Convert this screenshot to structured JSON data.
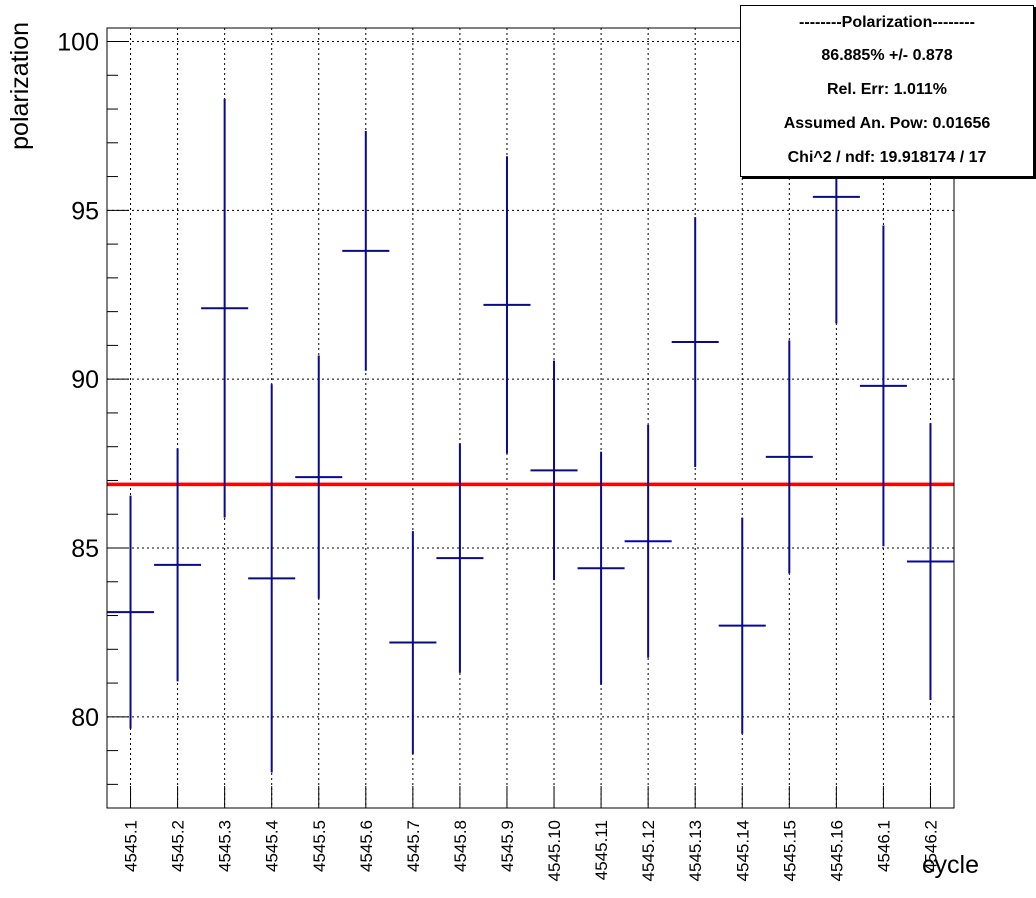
{
  "chart_data": {
    "type": "scatter",
    "xlabel": "cycle",
    "ylabel": "polarization",
    "ylim": [
      77.3,
      100.4
    ],
    "yticks": [
      80,
      85,
      90,
      95,
      100
    ],
    "grid": true,
    "categories": [
      "4545.1",
      "4545.2",
      "4545.3",
      "4545.4",
      "4545.5",
      "4545.6",
      "4545.7",
      "4545.8",
      "4545.9",
      "4545.10",
      "4545.11",
      "4545.12",
      "4545.13",
      "4545.14",
      "4545.15",
      "4545.16",
      "4546.1",
      "4546.2"
    ],
    "series": [
      {
        "values": [
          83.1,
          84.5,
          92.1,
          84.1,
          87.1,
          93.8,
          82.2,
          84.7,
          92.2,
          87.3,
          84.4,
          85.2,
          91.1,
          82.7,
          87.7,
          95.4,
          89.8,
          84.6
        ],
        "errors": [
          3.45,
          3.45,
          6.2,
          5.75,
          3.6,
          3.55,
          3.3,
          3.4,
          4.4,
          3.25,
          3.45,
          3.45,
          3.7,
          3.2,
          3.45,
          3.75,
          4.75,
          4.1
        ],
        "color": "#0a0a8c"
      }
    ],
    "fit_line": {
      "value": 86.885,
      "color": "#ff0000"
    },
    "stats_box": {
      "title": "--------Polarization--------",
      "lines": [
        "86.885% +/- 0.878",
        "Rel. Err: 1.011%",
        "Assumed An. Pow: 0.01656",
        "Chi^2 / ndf: 19.918174 / 17"
      ]
    }
  }
}
